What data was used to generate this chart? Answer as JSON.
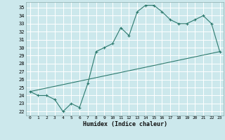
{
  "xlabel": "Humidex (Indice chaleur)",
  "bg_color": "#cce8ec",
  "grid_color": "#ffffff",
  "line_color": "#2d7a6e",
  "xlim": [
    -0.5,
    23.5
  ],
  "ylim": [
    21.5,
    35.7
  ],
  "xticks": [
    0,
    1,
    2,
    3,
    4,
    5,
    6,
    7,
    8,
    9,
    10,
    11,
    12,
    13,
    14,
    15,
    16,
    17,
    18,
    19,
    20,
    21,
    22,
    23
  ],
  "yticks": [
    22,
    23,
    24,
    25,
    26,
    27,
    28,
    29,
    30,
    31,
    32,
    33,
    34,
    35
  ],
  "line1_x": [
    0,
    1,
    2,
    3,
    4,
    5,
    6,
    7,
    8,
    9,
    10,
    11,
    12,
    13,
    14,
    15,
    16,
    17,
    18,
    19,
    20,
    21,
    22,
    23
  ],
  "line1_y": [
    24.5,
    24.0,
    24.0,
    23.5,
    22.0,
    23.0,
    22.5,
    25.5,
    29.5,
    30.0,
    30.5,
    32.5,
    31.5,
    34.5,
    35.3,
    35.3,
    34.5,
    33.5,
    33.0,
    33.0,
    33.5,
    34.0,
    33.0,
    29.5
  ],
  "line2_x": [
    0,
    23
  ],
  "line2_y": [
    24.5,
    29.5
  ],
  "marker": "+"
}
